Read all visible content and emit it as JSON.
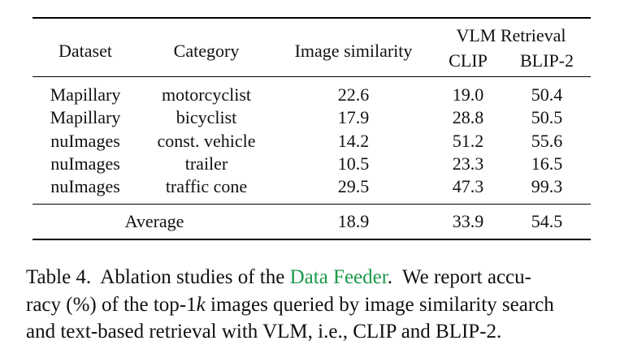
{
  "table": {
    "header": {
      "dataset": "Dataset",
      "category": "Category",
      "image_similarity": "Image similarity",
      "group": "VLM Retrieval",
      "clip": "CLIP",
      "blip": "BLIP-2"
    },
    "rows": [
      [
        "Mapillary",
        "motorcyclist",
        "22.6",
        "19.0",
        "50.4"
      ],
      [
        "Mapillary",
        "bicyclist",
        "17.9",
        "28.8",
        "50.5"
      ],
      [
        "nuImages",
        "const. vehicle",
        "14.2",
        "51.2",
        "55.6"
      ],
      [
        "nuImages",
        "trailer",
        "10.5",
        "23.3",
        "16.5"
      ],
      [
        "nuImages",
        "traffic cone",
        "29.5",
        "47.3",
        "99.3"
      ]
    ],
    "average": [
      "Average",
      "18.9",
      "33.9",
      "54.5"
    ]
  },
  "caption": {
    "line1": {
      "before": "Table 4.  Ablation studies of the ",
      "link": "Data Feeder",
      "after": ".  We report accu-"
    },
    "line2": {
      "before": "racy (%) of the top-1",
      "italic": "k",
      "after": " images queried by image similarity search"
    },
    "line3": "and text-based retrieval with VLM, i.e., CLIP and BLIP-2."
  }
}
